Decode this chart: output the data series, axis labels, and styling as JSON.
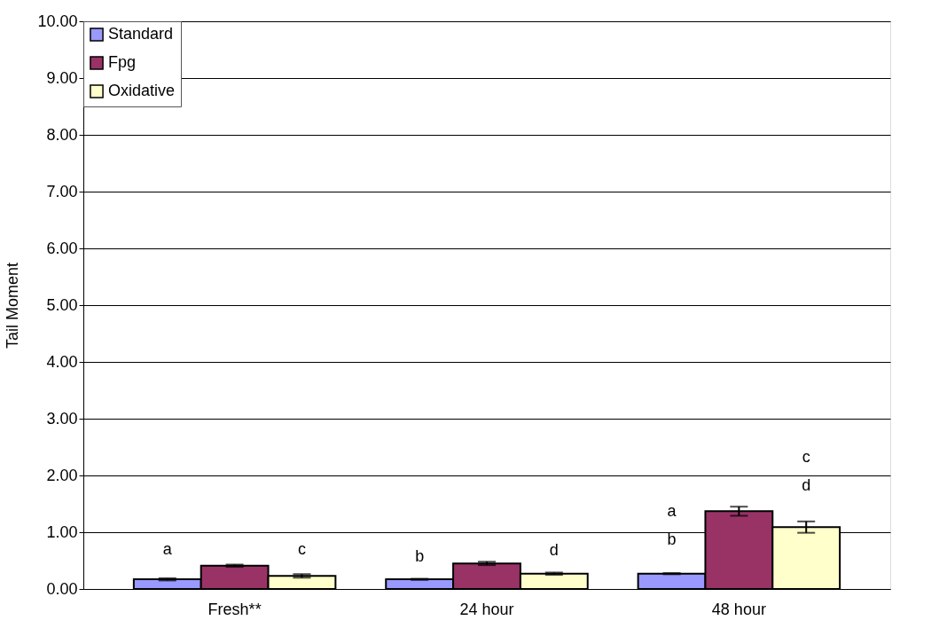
{
  "chart_data": {
    "type": "bar",
    "ylabel": "Tail Moment",
    "categories": [
      "Fresh**",
      "24 hour",
      "48 hour"
    ],
    "series": [
      {
        "name": "Standard",
        "color": "#9999ff",
        "values": [
          0.17,
          0.17,
          0.27
        ],
        "errors": [
          0.02,
          0.01,
          0.01
        ]
      },
      {
        "name": "Fpg",
        "color": "#993366",
        "values": [
          0.41,
          0.45,
          1.37
        ],
        "errors": [
          0.02,
          0.03,
          0.08
        ]
      },
      {
        "name": "Oxidative",
        "color": "#ffffcc",
        "values": [
          0.23,
          0.27,
          1.09
        ],
        "errors": [
          0.03,
          0.02,
          0.1
        ]
      }
    ],
    "ylim": [
      0,
      10
    ],
    "yticks": [
      {
        "value": 0,
        "label": "0.00"
      },
      {
        "value": 1,
        "label": "1.00"
      },
      {
        "value": 2,
        "label": "2.00"
      },
      {
        "value": 3,
        "label": "3.00"
      },
      {
        "value": 4,
        "label": "4.00"
      },
      {
        "value": 5,
        "label": "5.00"
      },
      {
        "value": 6,
        "label": "6.00"
      },
      {
        "value": 7,
        "label": "7.00"
      },
      {
        "value": 8,
        "label": "8.00"
      },
      {
        "value": 9,
        "label": "9.00"
      },
      {
        "value": 10,
        "label": "10.00"
      }
    ],
    "grid": "y",
    "legend": "top left",
    "annotations": [
      "a",
      "c",
      "b",
      "d",
      "a",
      "b",
      "c",
      "d"
    ]
  }
}
